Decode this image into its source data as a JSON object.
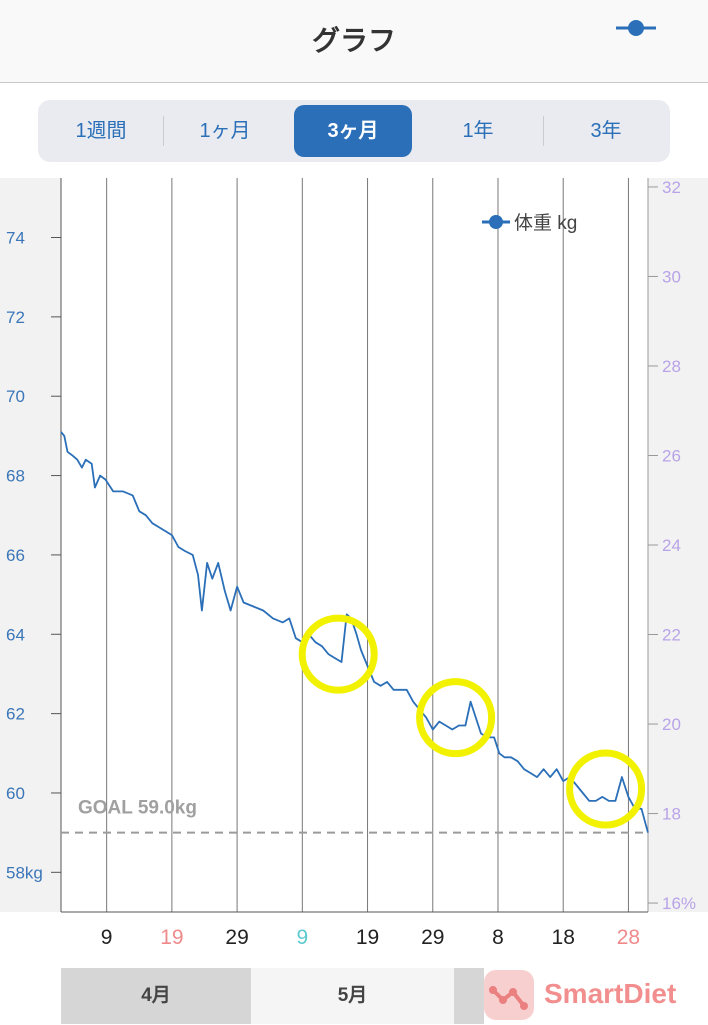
{
  "header": {
    "title": "グラフ"
  },
  "tabs": [
    {
      "label": "1週間",
      "active": false
    },
    {
      "label": "1ヶ月",
      "active": false
    },
    {
      "label": "3ヶ月",
      "active": true
    },
    {
      "label": "1年",
      "active": false
    },
    {
      "label": "3年",
      "active": false
    }
  ],
  "months": [
    {
      "label": "4月",
      "selected": true
    },
    {
      "label": "5月",
      "selected": false
    },
    {
      "label": "",
      "selected": true
    }
  ],
  "logo": {
    "text": "SmartDiet"
  },
  "chart_data": {
    "type": "line",
    "legend": "体重 kg",
    "legend_position": "top-right",
    "left_axis": {
      "ticks": [
        "58kg",
        "60",
        "62",
        "64",
        "66",
        "68",
        "70",
        "72",
        "74"
      ],
      "range": [
        57.0,
        75.5
      ]
    },
    "right_axis": {
      "ticks": [
        "16%",
        "18",
        "20",
        "22",
        "24",
        "26",
        "28",
        "30",
        "32"
      ],
      "range": [
        15.8,
        32.2
      ]
    },
    "goal": {
      "value": 59.0,
      "label": "GOAL 59.0kg"
    },
    "x_ticks": [
      {
        "label": "9",
        "day": 9,
        "color": "#222222"
      },
      {
        "label": "19",
        "day": 19,
        "color": "#f08a8a"
      },
      {
        "label": "29",
        "day": 29,
        "color": "#222222"
      },
      {
        "label": "9",
        "day": 39,
        "color": "#5ccbd0"
      },
      {
        "label": "19",
        "day": 49,
        "color": "#222222"
      },
      {
        "label": "29",
        "day": 59,
        "color": "#222222"
      },
      {
        "label": "8",
        "day": 69,
        "color": "#222222"
      },
      {
        "label": "18",
        "day": 79,
        "color": "#222222"
      },
      {
        "label": "28",
        "day": 89,
        "color": "#f08a8a"
      }
    ],
    "week_lines_days": [
      2,
      9,
      19,
      29,
      39,
      49,
      59,
      69,
      79,
      89
    ],
    "x_range": [
      2,
      92
    ],
    "series": [
      {
        "name": "体重 kg",
        "color": "#2a6fb8",
        "points": [
          [
            2.0,
            69.1
          ],
          [
            2.5,
            69.0
          ],
          [
            3.0,
            68.6
          ],
          [
            3.8,
            68.5
          ],
          [
            4.5,
            68.4
          ],
          [
            5.2,
            68.2
          ],
          [
            5.8,
            68.4
          ],
          [
            6.7,
            68.3
          ],
          [
            7.2,
            67.7
          ],
          [
            8.0,
            68.0
          ],
          [
            8.8,
            67.9
          ],
          [
            10.0,
            67.6
          ],
          [
            11.5,
            67.6
          ],
          [
            13.0,
            67.5
          ],
          [
            14.0,
            67.1
          ],
          [
            15.0,
            67.0
          ],
          [
            16.0,
            66.8
          ],
          [
            17.0,
            66.7
          ],
          [
            18.0,
            66.6
          ],
          [
            19.0,
            66.5
          ],
          [
            20.0,
            66.2
          ],
          [
            21.0,
            66.1
          ],
          [
            22.2,
            66.0
          ],
          [
            23.0,
            65.5
          ],
          [
            23.6,
            64.6
          ],
          [
            24.4,
            65.8
          ],
          [
            25.2,
            65.4
          ],
          [
            26.1,
            65.8
          ],
          [
            27.1,
            65.1
          ],
          [
            28.0,
            64.6
          ],
          [
            29.0,
            65.2
          ],
          [
            30.0,
            64.8
          ],
          [
            31.5,
            64.7
          ],
          [
            33.0,
            64.6
          ],
          [
            34.5,
            64.4
          ],
          [
            36.0,
            64.3
          ],
          [
            37.0,
            64.4
          ],
          [
            38.0,
            63.9
          ],
          [
            39.0,
            63.8
          ],
          [
            40.0,
            64.0
          ],
          [
            41.0,
            63.8
          ],
          [
            42.0,
            63.7
          ],
          [
            43.0,
            63.5
          ],
          [
            44.0,
            63.4
          ],
          [
            45.0,
            63.3
          ],
          [
            45.8,
            64.5
          ],
          [
            46.5,
            64.4
          ],
          [
            47.3,
            64.0
          ],
          [
            48.0,
            63.6
          ],
          [
            49.0,
            63.2
          ],
          [
            50.0,
            62.8
          ],
          [
            51.0,
            62.7
          ],
          [
            52.0,
            62.8
          ],
          [
            53.0,
            62.6
          ],
          [
            54.0,
            62.6
          ],
          [
            55.0,
            62.6
          ],
          [
            56.0,
            62.3
          ],
          [
            57.0,
            62.1
          ],
          [
            58.0,
            61.9
          ],
          [
            59.0,
            61.6
          ],
          [
            60.0,
            61.8
          ],
          [
            61.0,
            61.7
          ],
          [
            62.0,
            61.6
          ],
          [
            63.0,
            61.7
          ],
          [
            64.0,
            61.7
          ],
          [
            64.8,
            62.3
          ],
          [
            65.6,
            61.9
          ],
          [
            66.4,
            61.5
          ],
          [
            67.4,
            61.4
          ],
          [
            68.4,
            61.4
          ],
          [
            69.2,
            61.0
          ],
          [
            70.0,
            60.9
          ],
          [
            71.0,
            60.9
          ],
          [
            72.0,
            60.8
          ],
          [
            73.0,
            60.6
          ],
          [
            74.0,
            60.5
          ],
          [
            75.0,
            60.4
          ],
          [
            76.0,
            60.6
          ],
          [
            77.0,
            60.4
          ],
          [
            78.0,
            60.6
          ],
          [
            79.0,
            60.3
          ],
          [
            80.0,
            60.4
          ],
          [
            81.0,
            60.2
          ],
          [
            82.0,
            60.0
          ],
          [
            83.0,
            59.8
          ],
          [
            84.0,
            59.8
          ],
          [
            85.0,
            59.9
          ],
          [
            86.0,
            59.8
          ],
          [
            87.0,
            59.8
          ],
          [
            88.0,
            60.4
          ],
          [
            89.0,
            59.9
          ],
          [
            90.0,
            59.6
          ],
          [
            91.0,
            59.6
          ],
          [
            91.5,
            59.3
          ],
          [
            92.0,
            59.0
          ]
        ]
      }
    ],
    "highlights": [
      {
        "day": 44.5,
        "value": 63.5
      },
      {
        "day": 62.5,
        "value": 61.9
      },
      {
        "day": 85.5,
        "value": 60.1
      }
    ]
  }
}
